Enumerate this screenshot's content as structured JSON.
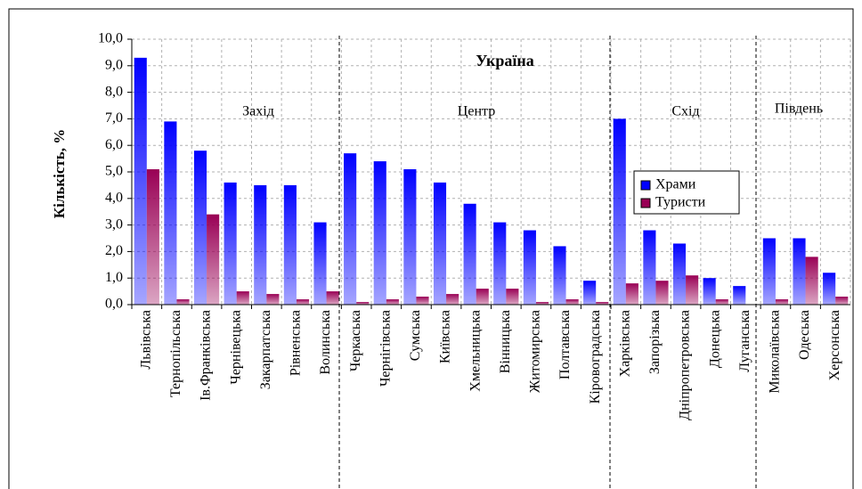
{
  "chart_data": {
    "type": "bar",
    "ylabel": "Кількість, %",
    "annotations": [
      "Україна",
      "Захід",
      "Центр",
      "Схід",
      "Південь"
    ],
    "categories": [
      "Львівська",
      "Тернопільська",
      "Ів.Франківська",
      "Чернівецька",
      "Закарпатська",
      "Рівненська",
      "Волинська",
      "Черкаська",
      "Чернігівська",
      "Сумська",
      "Київська",
      "Хмельницька",
      "Вінницька",
      "Житомирська",
      "Полтавська",
      "Кіровоградська",
      "Харківська",
      "Запорізька",
      "Дніпропетровська",
      "Донецька",
      "Луганська",
      "Миколаївська",
      "Одеська",
      "Херсонська"
    ],
    "series": [
      {
        "name": "Храми",
        "color": "#0000ff",
        "values": [
          9.3,
          6.9,
          5.8,
          4.6,
          4.5,
          4.5,
          3.1,
          5.7,
          5.4,
          5.1,
          4.6,
          3.8,
          3.1,
          2.8,
          2.2,
          0.9,
          7.0,
          2.8,
          2.3,
          1.0,
          0.7,
          2.5,
          2.5,
          1.2
        ]
      },
      {
        "name": "Туристи",
        "color": "#990055",
        "values": [
          5.1,
          0.2,
          3.4,
          0.5,
          0.4,
          0.2,
          0.5,
          0.1,
          0.2,
          0.3,
          0.4,
          0.6,
          0.6,
          0.1,
          0.2,
          0.1,
          0.8,
          0.9,
          1.1,
          0.2,
          0.0,
          0.2,
          1.8,
          0.3
        ]
      }
    ],
    "ylim": [
      0,
      10
    ],
    "yticks": [
      {
        "value": 0,
        "label": "0,0"
      },
      {
        "value": 1,
        "label": "1,0"
      },
      {
        "value": 2,
        "label": "2,0"
      },
      {
        "value": 3,
        "label": "3,0"
      },
      {
        "value": 4,
        "label": "4,0"
      },
      {
        "value": 5,
        "label": "5,0"
      },
      {
        "value": 6,
        "label": "6,0"
      },
      {
        "value": 7,
        "label": "7,0"
      },
      {
        "value": 8,
        "label": "8,0"
      },
      {
        "value": 9,
        "label": "9,0"
      },
      {
        "value": 10,
        "label": "10,0"
      }
    ],
    "grid": true
  }
}
